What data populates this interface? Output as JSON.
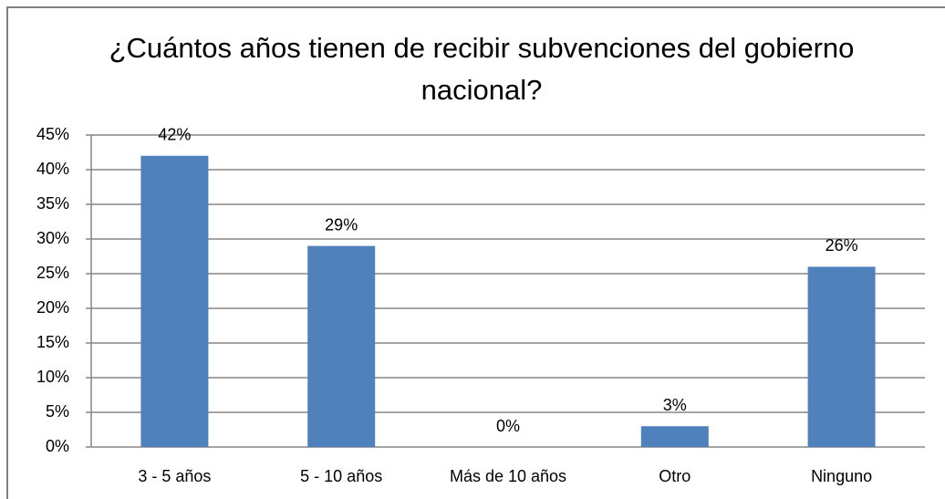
{
  "chart_data": {
    "type": "bar",
    "title": "¿Cuántos años tienen de recibir subvenciones del gobierno nacional?",
    "categories": [
      "3 - 5 años",
      "5 - 10 años",
      "Más de 10 años",
      "Otro",
      "Ninguno"
    ],
    "values": [
      42,
      29,
      0,
      3,
      26
    ],
    "value_labels": [
      "42%",
      "29%",
      "0%",
      "3%",
      "26%"
    ],
    "color": "#4f81bd",
    "ylim": [
      0,
      45
    ],
    "yticks": [
      {
        "value": 0,
        "label": "0%"
      },
      {
        "value": 5,
        "label": "5%"
      },
      {
        "value": 10,
        "label": "10%"
      },
      {
        "value": 15,
        "label": "15%"
      },
      {
        "value": 20,
        "label": "20%"
      },
      {
        "value": 25,
        "label": "25%"
      },
      {
        "value": 30,
        "label": "30%"
      },
      {
        "value": 35,
        "label": "35%"
      },
      {
        "value": 40,
        "label": "40%"
      },
      {
        "value": 45,
        "label": "45%"
      }
    ],
    "grid": true
  }
}
